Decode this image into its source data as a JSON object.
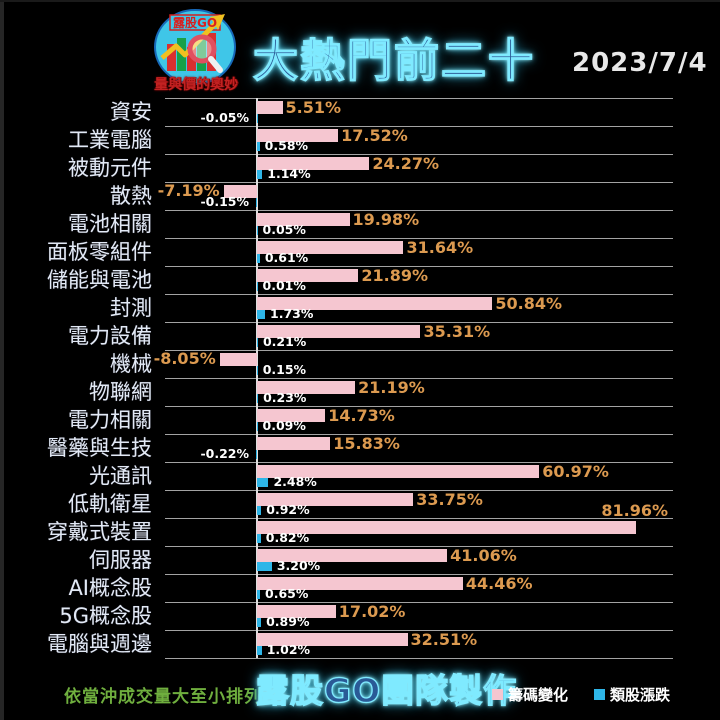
{
  "header": {
    "logo_text": "露股GO",
    "logo_subtitle": "量與價的奧妙",
    "title": "大熱門前二十",
    "date": "2023/7/4"
  },
  "footer": {
    "note": "依當沖成交量大至小排列",
    "brand": "露股GO團隊製作"
  },
  "colors": {
    "background": "#000000",
    "title_fill": "#2a5a96",
    "neon_glow": "#7feaff",
    "pink_bar": "#f5c6d0",
    "blue_bar": "#2eb6e8",
    "pink_value_label": "#dc9a50",
    "blue_value_label": "#ffffff",
    "note_green": "#6fae3e",
    "category_label": "#e2e9f5",
    "grid_line": "#bfbfbf"
  },
  "chart_data": {
    "type": "bar",
    "orientation": "horizontal",
    "title": "大熱門前二十",
    "date": "2023/7/4",
    "sort_note": "依當沖成交量大至小排列",
    "value_suffix": "%",
    "xlim": [
      -10,
      90
    ],
    "grid": "row-separators",
    "legend_position": "bottom-right",
    "categories": [
      "資安",
      "工業電腦",
      "被動元件",
      "散熱",
      "電池相關",
      "面板零組件",
      "儲能與電池",
      "封測",
      "電力設備",
      "機械",
      "物聯網",
      "電力相關",
      "醫藥與生技",
      "光通訊",
      "低軌衛星",
      "穿戴式裝置",
      "伺服器",
      "AI概念股",
      "5G概念股",
      "電腦與週邊"
    ],
    "series": [
      {
        "name": "籌碼變化",
        "color": "#f5c6d0",
        "label_color": "#dc9a50",
        "values": [
          5.51,
          17.52,
          24.27,
          -7.19,
          19.98,
          31.64,
          21.89,
          50.84,
          35.31,
          -8.05,
          21.19,
          14.73,
          15.83,
          60.97,
          33.75,
          81.96,
          41.06,
          44.46,
          17.02,
          32.51
        ]
      },
      {
        "name": "類股漲跌",
        "color": "#2eb6e8",
        "label_color": "#ffffff",
        "values": [
          -0.05,
          0.58,
          1.14,
          -0.15,
          0.05,
          0.61,
          0.01,
          1.73,
          0.21,
          0.15,
          0.23,
          0.09,
          -0.22,
          2.48,
          0.92,
          0.82,
          3.2,
          0.65,
          0.89,
          1.02
        ]
      }
    ]
  }
}
